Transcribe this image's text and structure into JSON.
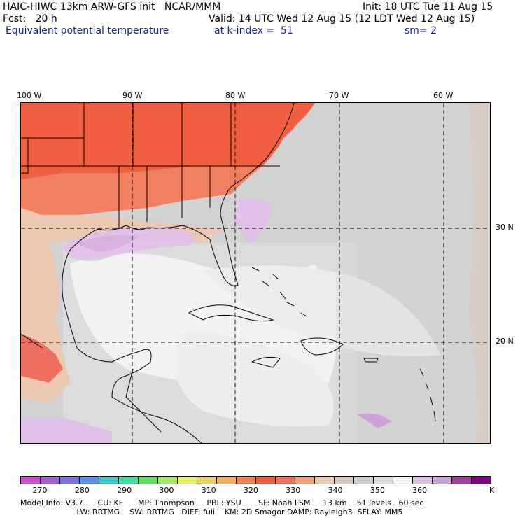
{
  "header": {
    "line1_left": "HAIC-HIWC 13km ARW-GFS init   NCAR/MMM",
    "line1_right": "Init: 18 UTC Tue 11 Aug 15",
    "line2_left": "Fcst:   20 h",
    "line2_right": "Valid: 14 UTC Wed 12 Aug 15 (12 LDT Wed 12 Aug 15)",
    "line3_field": "Equivalent potential temperature",
    "line3_level": "at k-index =  51",
    "line3_smooth": "sm= 2"
  },
  "map": {
    "longitude_labels": [
      "100 W",
      "90 W",
      "80 W",
      "70 W",
      "60 W"
    ],
    "latitude_labels": [
      "30 N",
      "20 N"
    ],
    "colors": {
      "land_border": "#000000",
      "grid_line": "#000000"
    }
  },
  "colorbar": {
    "colors": [
      "#d050d0",
      "#a060c8",
      "#8070e0",
      "#5a90e8",
      "#3cc8c8",
      "#40e0a0",
      "#60e060",
      "#a0e860",
      "#e8f060",
      "#f0d060",
      "#f0b060",
      "#f08050",
      "#f06040",
      "#f07060",
      "#f0a080",
      "#ecc8b0",
      "#d8c8c0",
      "#cccccc",
      "#dcdcdc",
      "#f4f4f4",
      "#e0c0e8",
      "#c8a0d8",
      "#a040a0",
      "#800080"
    ],
    "tick_labels": [
      "270",
      "280",
      "290",
      "300",
      "310",
      "320",
      "330",
      "340",
      "350",
      "360"
    ],
    "unit": "K"
  },
  "model_info": {
    "line1": "Model Info: V3.7      CU: KF      MP: Thompson     PBL: YSU       SF: Noah LSM     13 km    51 levels   60 sec",
    "line2": "                       LW: RRTMG    SW: RRTMG   DIFF: full    KM: 2D Smagor DAMP: Rayleigh3  SFLAY: MM5"
  }
}
